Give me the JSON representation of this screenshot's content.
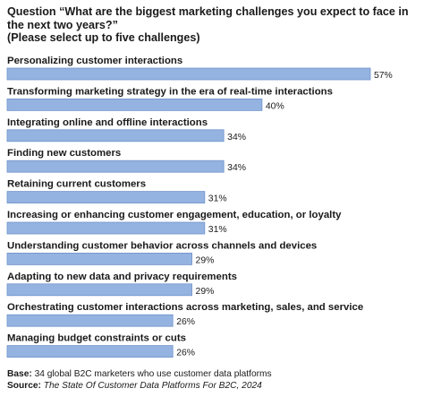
{
  "title": "Question “What are the biggest marketing challenges you expect to face in the next two years?”",
  "subtitle": "(Please select up to five challenges)",
  "chart_data": {
    "type": "bar",
    "orientation": "horizontal",
    "categories": [
      "Personalizing customer interactions",
      "Transforming marketing strategy in the era of real-time interactions",
      "Integrating online and offline interactions",
      "Finding new customers",
      "Retaining current customers",
      "Increasing or enhancing customer engagement, education, or loyalty",
      "Understanding customer behavior across channels and devices",
      "Adapting to new data and privacy requirements",
      "Orchestrating customer interactions across marketing, sales, and service",
      "Managing budget constraints or cuts"
    ],
    "values": [
      57,
      40,
      34,
      34,
      31,
      31,
      29,
      29,
      26,
      26
    ],
    "value_labels": [
      "57%",
      "40%",
      "34%",
      "34%",
      "31%",
      "31%",
      "29%",
      "29%",
      "26%",
      "26%"
    ],
    "xlim": [
      0,
      57
    ],
    "bar_color": "#95b3e0",
    "grid": false,
    "legend": "none"
  },
  "footer": {
    "base_label": "Base:",
    "base_text": "34 global B2C marketers who use customer data platforms",
    "source_label": "Source:",
    "source_text": "The State Of Customer Data Platforms For B2C, 2024"
  }
}
